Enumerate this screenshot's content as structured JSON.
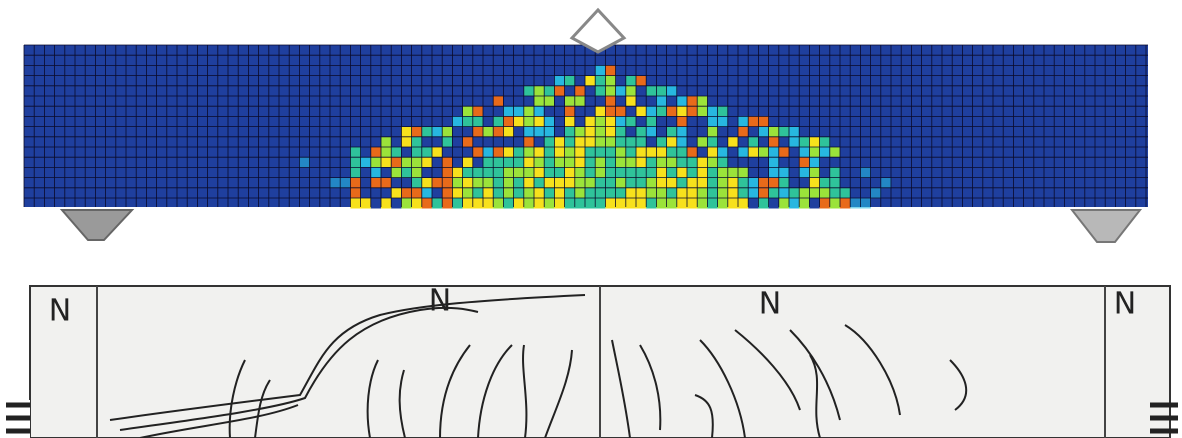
{
  "photo": {
    "labels": [
      "N",
      "N",
      "N",
      "N"
    ]
  }
}
